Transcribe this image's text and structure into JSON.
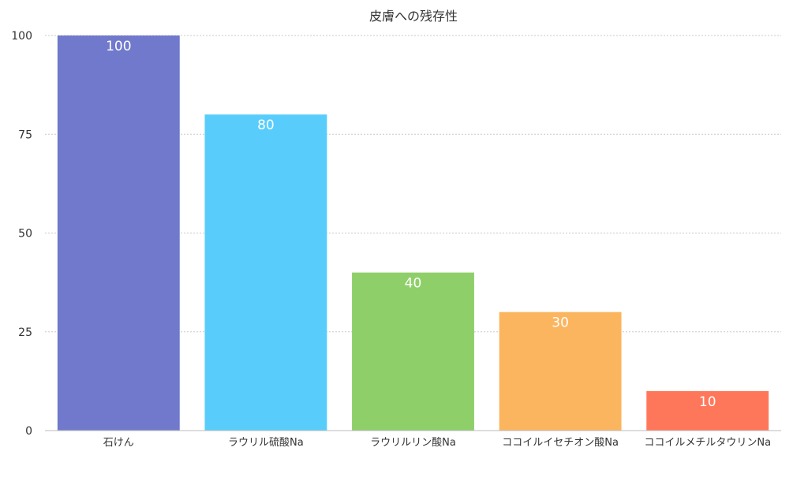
{
  "chart_data": {
    "type": "bar",
    "title": "皮膚への残存性",
    "categories": [
      "石けん",
      "ラウリル硫酸Na",
      "ラウリルリン酸Na",
      "ココイルイセチオン酸Na",
      "ココイルメチルタウリンNa"
    ],
    "values": [
      100,
      80,
      40,
      30,
      10
    ],
    "colors": [
      "#7079cc",
      "#58cdfc",
      "#8ecf6a",
      "#fcb55f",
      "#ff775a"
    ],
    "ylim": [
      0,
      100
    ],
    "yticks": [
      0,
      25,
      50,
      75,
      100
    ],
    "grid": true,
    "data_labels": true,
    "xlabel": "",
    "ylabel": ""
  }
}
